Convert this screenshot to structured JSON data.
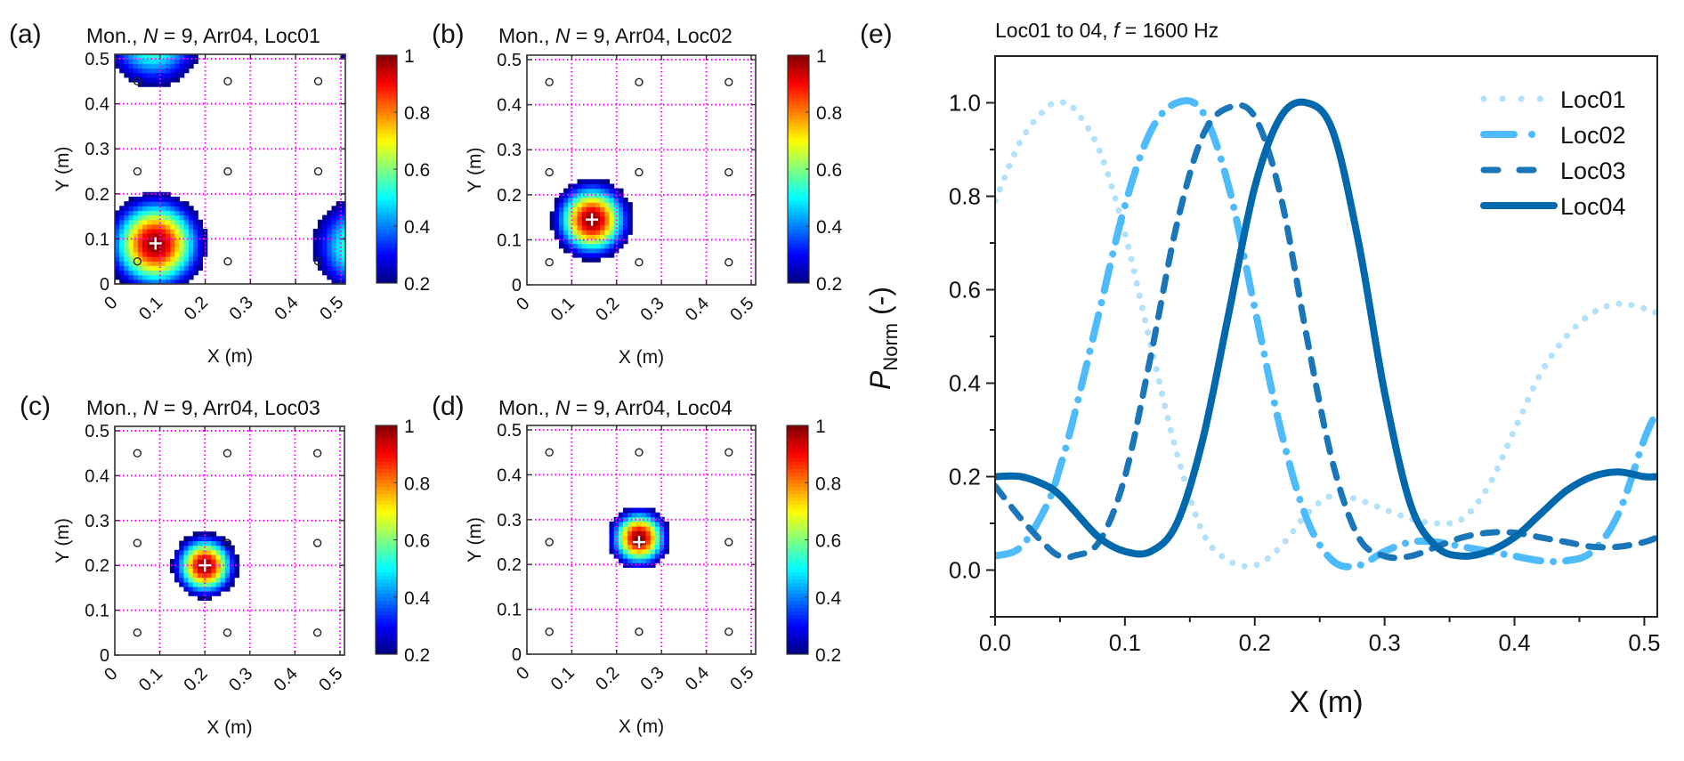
{
  "figure": {
    "colorbar": {
      "min": 0.2,
      "max": 1.0,
      "ticks": [
        "0.2",
        "0.4",
        "0.6",
        "0.8",
        "1"
      ],
      "colormap": "jet"
    },
    "mic_positions_m": [
      [
        0.05,
        0.05
      ],
      [
        0.25,
        0.05
      ],
      [
        0.45,
        0.05
      ],
      [
        0.05,
        0.25
      ],
      [
        0.25,
        0.25
      ],
      [
        0.45,
        0.25
      ],
      [
        0.05,
        0.45
      ],
      [
        0.25,
        0.45
      ],
      [
        0.45,
        0.45
      ]
    ]
  },
  "chart_data": [
    {
      "type": "heatmap",
      "panel_label": "(a)",
      "title_prefix": "Mon., ",
      "title_var": "N",
      "title_suffix": " = 9, Arr04, Loc01",
      "xlabel": "X (m)",
      "ylabel": "Y (m)",
      "xlim": [
        0,
        0.51
      ],
      "ylim": [
        0,
        0.51
      ],
      "xticks": [
        "0",
        "0.1",
        "0.2",
        "0.3",
        "0.4",
        "0.5"
      ],
      "yticks": [
        "0",
        "0.1",
        "0.2",
        "0.3",
        "0.4",
        "0.5"
      ],
      "grid": true,
      "grid_color": "#ff00ff",
      "source_marker": [
        0.09,
        0.09
      ],
      "peaks": [
        {
          "x": 0.09,
          "y": 0.09,
          "amp": 1.0,
          "width": 0.085
        },
        {
          "x": 0.085,
          "y": 0.545,
          "amp": 0.62,
          "width": 0.095
        },
        {
          "x": 0.545,
          "y": 0.085,
          "amp": 0.62,
          "width": 0.095
        },
        {
          "x": 0.56,
          "y": 0.56,
          "amp": 0.45,
          "width": 0.09
        }
      ],
      "threshold": 0.2
    },
    {
      "type": "heatmap",
      "panel_label": "(b)",
      "title_prefix": "Mon., ",
      "title_var": "N",
      "title_suffix": " = 9, Arr04, Loc02",
      "xlabel": "X (m)",
      "ylabel": "Y (m)",
      "xlim": [
        0,
        0.51
      ],
      "ylim": [
        0,
        0.51
      ],
      "xticks": [
        "0",
        "0.1",
        "0.2",
        "0.3",
        "0.4",
        "0.5"
      ],
      "yticks": [
        "0",
        "0.1",
        "0.2",
        "0.3",
        "0.4",
        "0.5"
      ],
      "grid": true,
      "grid_color": "#ff00ff",
      "source_marker": [
        0.145,
        0.145
      ],
      "peaks": [
        {
          "x": 0.145,
          "y": 0.145,
          "amp": 1.0,
          "width": 0.068
        },
        {
          "x": 0.145,
          "y": 0.575,
          "amp": 0.45,
          "width": 0.07
        },
        {
          "x": 0.575,
          "y": 0.145,
          "amp": 0.42,
          "width": 0.07
        }
      ],
      "threshold": 0.2
    },
    {
      "type": "heatmap",
      "panel_label": "(c)",
      "title_prefix": "Mon., ",
      "title_var": "N",
      "title_suffix": " = 9, Arr04, Loc03",
      "xlabel": "X (m)",
      "ylabel": "Y (m)",
      "xlim": [
        0,
        0.51
      ],
      "ylim": [
        0,
        0.51
      ],
      "xticks": [
        "0",
        "0.1",
        "0.2",
        "0.3",
        "0.4",
        "0.5"
      ],
      "yticks": [
        "0",
        "0.1",
        "0.2",
        "0.3",
        "0.4",
        "0.5"
      ],
      "grid": true,
      "grid_color": "#ff00ff",
      "source_marker": [
        0.2,
        0.2
      ],
      "peaks": [
        {
          "x": 0.2,
          "y": 0.2,
          "amp": 1.0,
          "width": 0.055
        }
      ],
      "threshold": 0.2
    },
    {
      "type": "heatmap",
      "panel_label": "(d)",
      "title_prefix": "Mon., ",
      "title_var": "N",
      "title_suffix": " = 9, Arr04, Loc04",
      "xlabel": "X (m)",
      "ylabel": "Y (m)",
      "xlim": [
        0,
        0.51
      ],
      "ylim": [
        0,
        0.51
      ],
      "xticks": [
        "0",
        "0.1",
        "0.2",
        "0.3",
        "0.4",
        "0.5"
      ],
      "yticks": [
        "0",
        "0.1",
        "0.2",
        "0.3",
        "0.4",
        "0.5"
      ],
      "grid": true,
      "grid_color": "#ff00ff",
      "source_marker": [
        0.25,
        0.25
      ],
      "peaks": [
        {
          "x": 0.25,
          "y": 0.26,
          "amp": 1.0,
          "width": 0.053
        }
      ],
      "threshold": 0.2
    },
    {
      "type": "line",
      "panel_label": "(e)",
      "title_prefix": "Loc01 to 04, ",
      "title_var": "f",
      "title_suffix": " = 1600 Hz",
      "xlabel": "X (m)",
      "ylabel_main": "P",
      "ylabel_sub": "Norm",
      "ylabel_tail": " (-)",
      "xlim": [
        0,
        0.51
      ],
      "ylim": [
        -0.1,
        1.1
      ],
      "xticks": [
        "0.0",
        "0.1",
        "0.2",
        "0.3",
        "0.4",
        "0.5"
      ],
      "yticks": [
        "0.0",
        "0.2",
        "0.4",
        "0.6",
        "0.8",
        "1.0"
      ],
      "legend_position": "top-right",
      "x": [
        0.0,
        0.02,
        0.04,
        0.05,
        0.06,
        0.08,
        0.1,
        0.12,
        0.14,
        0.16,
        0.18,
        0.2,
        0.22,
        0.24,
        0.26,
        0.28,
        0.3,
        0.32,
        0.34,
        0.36,
        0.38,
        0.4,
        0.42,
        0.44,
        0.46,
        0.48,
        0.5,
        0.51
      ],
      "series": [
        {
          "name": "Loc01",
          "style": "dotted",
          "color": "#b3e0fb",
          "values": [
            0.79,
            0.92,
            0.99,
            1.0,
            0.99,
            0.9,
            0.72,
            0.48,
            0.25,
            0.08,
            0.02,
            0.01,
            0.05,
            0.12,
            0.16,
            0.15,
            0.13,
            0.11,
            0.1,
            0.11,
            0.18,
            0.3,
            0.42,
            0.5,
            0.55,
            0.57,
            0.56,
            0.55
          ]
        },
        {
          "name": "Loc02",
          "style": "dash-dot",
          "color": "#4dbbfc",
          "values": [
            0.03,
            0.05,
            0.14,
            0.22,
            0.32,
            0.55,
            0.78,
            0.94,
            1.0,
            0.98,
            0.82,
            0.56,
            0.3,
            0.11,
            0.02,
            0.01,
            0.04,
            0.06,
            0.06,
            0.05,
            0.04,
            0.03,
            0.02,
            0.02,
            0.04,
            0.12,
            0.28,
            0.34
          ]
        },
        {
          "name": "Loc03",
          "style": "dashed",
          "color": "#1a76b8",
          "values": [
            0.18,
            0.11,
            0.05,
            0.03,
            0.03,
            0.06,
            0.2,
            0.46,
            0.74,
            0.93,
            0.99,
            0.97,
            0.8,
            0.5,
            0.23,
            0.07,
            0.03,
            0.03,
            0.05,
            0.07,
            0.08,
            0.08,
            0.07,
            0.06,
            0.05,
            0.05,
            0.06,
            0.07
          ]
        },
        {
          "name": "Loc04",
          "style": "solid",
          "color": "#0069ad",
          "values": [
            0.2,
            0.2,
            0.18,
            0.16,
            0.13,
            0.07,
            0.04,
            0.04,
            0.1,
            0.28,
            0.55,
            0.82,
            0.97,
            1.0,
            0.94,
            0.7,
            0.38,
            0.14,
            0.05,
            0.03,
            0.04,
            0.07,
            0.12,
            0.17,
            0.2,
            0.21,
            0.2,
            0.2
          ]
        }
      ]
    }
  ]
}
